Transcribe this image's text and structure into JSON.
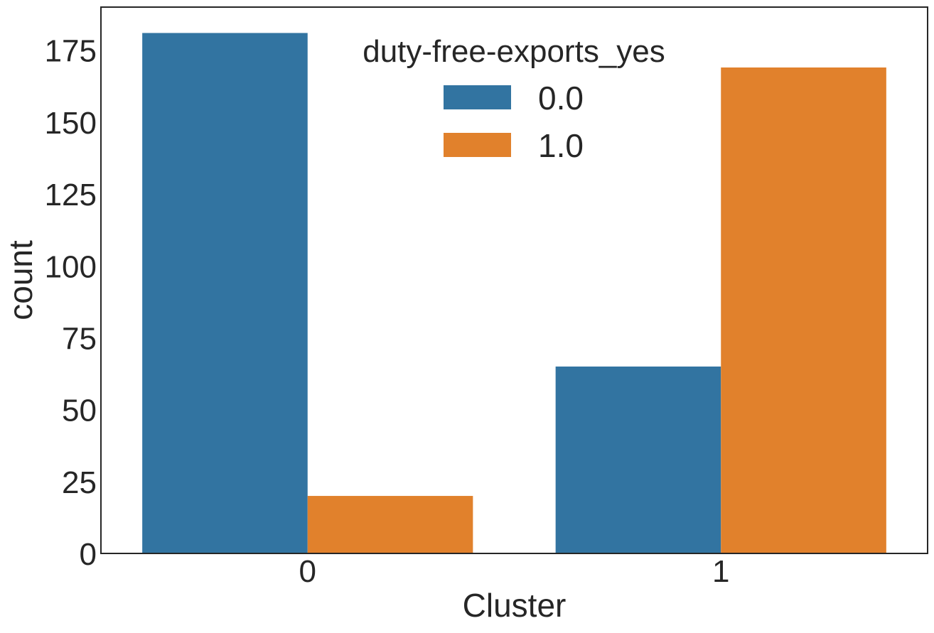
{
  "chart_data": {
    "type": "bar",
    "categories": [
      "0",
      "1"
    ],
    "series": [
      {
        "name": "0.0",
        "values": [
          181,
          65
        ]
      },
      {
        "name": "1.0",
        "values": [
          20,
          169
        ]
      }
    ],
    "xlabel": "Cluster",
    "ylabel": "count",
    "ylim": [
      0,
      190
    ],
    "yticks": [
      0,
      25,
      50,
      75,
      100,
      125,
      150,
      175
    ],
    "grid": false,
    "legend": {
      "title": "duty-free-exports_yes",
      "placement": "top-center"
    },
    "colors": [
      "#3274a1",
      "#e1812c"
    ],
    "axes_edge_color": "#262626"
  }
}
